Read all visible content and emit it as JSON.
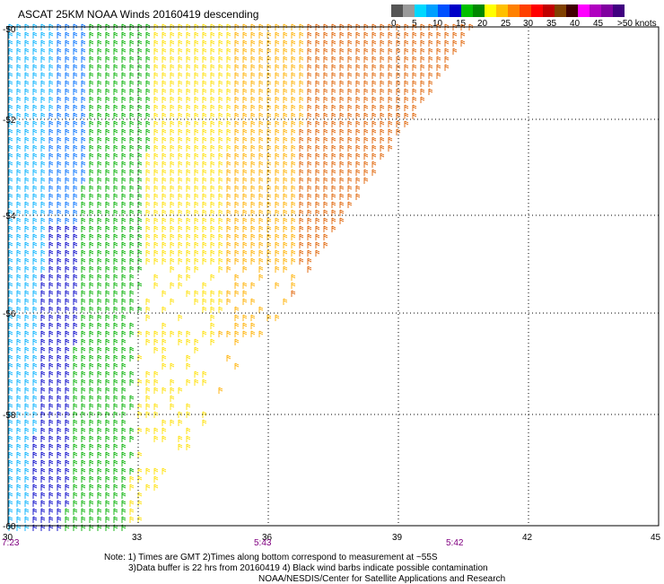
{
  "title": "ASCAT 25KM NOAA Winds 20160419 descending",
  "scale": {
    "colors": [
      "#555555",
      "#9a9a9a",
      "#00d8ff",
      "#00a0ff",
      "#0050ff",
      "#0000c8",
      "#00c000",
      "#008800",
      "#ffff00",
      "#ffc000",
      "#ff8000",
      "#ff4000",
      "#ff0000",
      "#c00000",
      "#804000",
      "#400000",
      "#ff00ff",
      "#b000c0",
      "#8000a0",
      "#400080"
    ],
    "labels": [
      "0",
      "5",
      "10",
      "15",
      "20",
      "25",
      "30",
      "35",
      "40",
      "45",
      ">50 knots"
    ]
  },
  "axes": {
    "lon_ticks": [
      "30",
      "33",
      "36",
      "39",
      "42",
      "45"
    ],
    "lat_ticks": [
      "-50",
      "-52",
      "-54",
      "-56",
      "-58",
      "-60"
    ]
  },
  "times": [
    "7:23",
    "5:43",
    "5:42"
  ],
  "notes": {
    "line1": "Note: 1) Times are GMT 2)Times along bottom correspond to measurement at ~55S",
    "line2": "3)Data buffer is 22 hrs from 20160419 4) Black wind barbs indicate possible contamination",
    "line3": "NOAA/NESDIS/Center for Satellite Applications and Research"
  }
}
